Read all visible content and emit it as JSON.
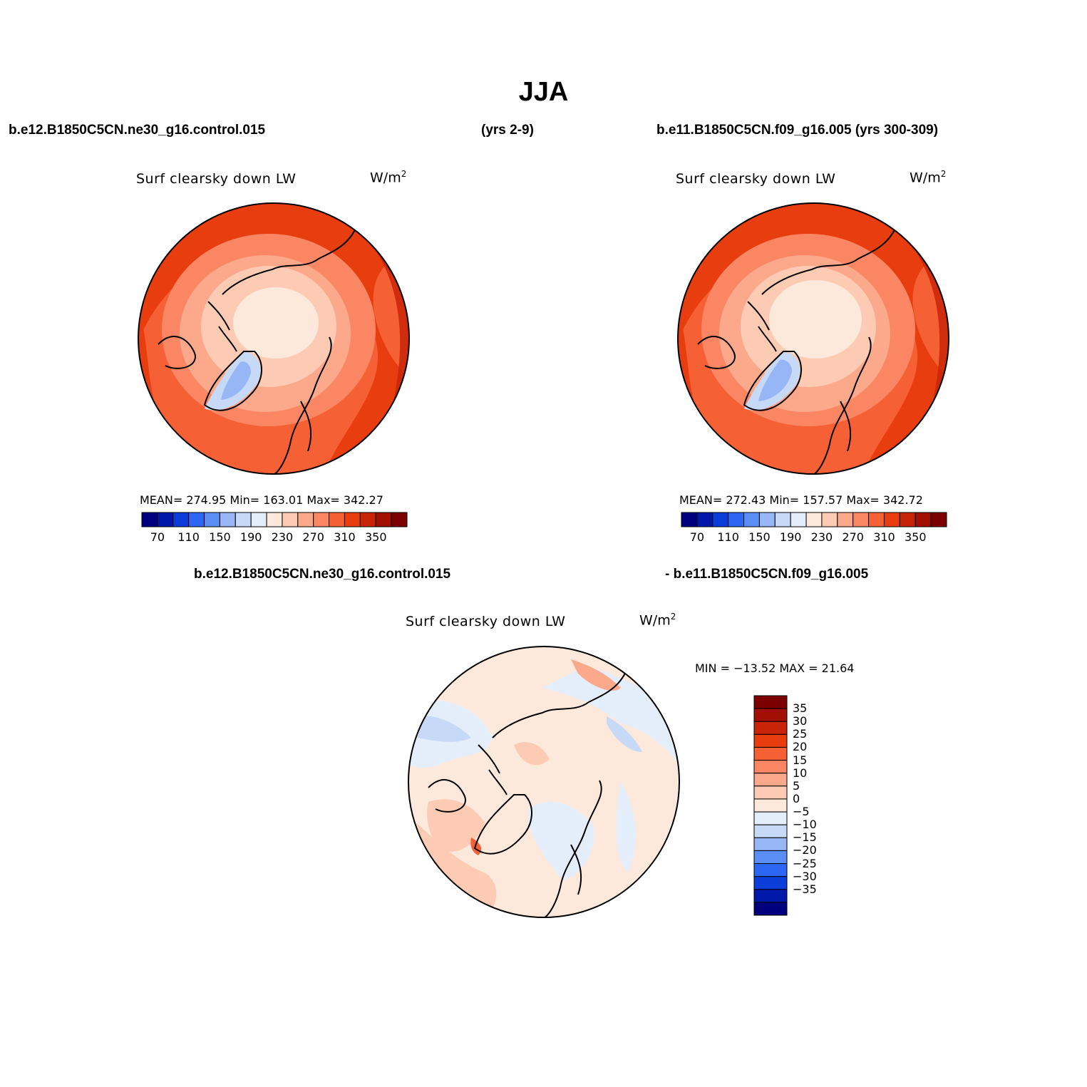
{
  "title": "JJA",
  "panels": {
    "top_left": {
      "case": "b.e12.B1850C5CN.ne30_g16.control.015",
      "years": "(yrs 2-9)",
      "field": "Surf clearsky down LW",
      "units": "W/m",
      "units_sup": "2",
      "stats": "MEAN= 274.95   Min= 163.01   Max= 342.27"
    },
    "top_right": {
      "case_years": "b.e11.B1850C5CN.f09_g16.005 (yrs 300-309)",
      "field": "Surf clearsky down LW",
      "units": "W/m",
      "units_sup": "2",
      "stats": "MEAN= 272.43   Min= 157.57   Max= 342.72"
    },
    "difference": {
      "case_a": "b.e12.B1850C5CN.ne30_g16.control.015",
      "case_b": "- b.e11.B1850C5CN.f09_g16.005",
      "field": "Surf clearsky down LW",
      "units": "W/m",
      "units_sup": "2",
      "stats": "MIN = −13.52 MAX =   21.64"
    }
  },
  "colorbars": {
    "absolute": {
      "colors": [
        "#00007f",
        "#0019a8",
        "#0b3ed8",
        "#2d66f2",
        "#5a8ef5",
        "#97b6f5",
        "#c6d9f7",
        "#e4eefb",
        "#fde9dc",
        "#fdcbb4",
        "#fca98b",
        "#fa8663",
        "#f66035",
        "#e83d0f",
        "#c82407",
        "#a20f03",
        "#7c0000"
      ],
      "tick_labels": [
        "70",
        "110",
        "150",
        "190",
        "230",
        "270",
        "310",
        "350"
      ]
    },
    "difference": {
      "colors_top_to_bottom": [
        "#7c0000",
        "#a20f03",
        "#c82407",
        "#e83d0f",
        "#f66035",
        "#fa8663",
        "#fca98b",
        "#fdcbb4",
        "#fde9dc",
        "#e4eefb",
        "#c6d9f7",
        "#97b6f5",
        "#5a8ef5",
        "#2d66f2",
        "#0b3ed8",
        "#0019a8",
        "#00007f"
      ],
      "tick_labels": [
        "35",
        "30",
        "25",
        "20",
        "15",
        "10",
        "5",
        "0",
        "−5",
        "−10",
        "−15",
        "−20",
        "−25",
        "−30",
        "−35"
      ]
    }
  }
}
